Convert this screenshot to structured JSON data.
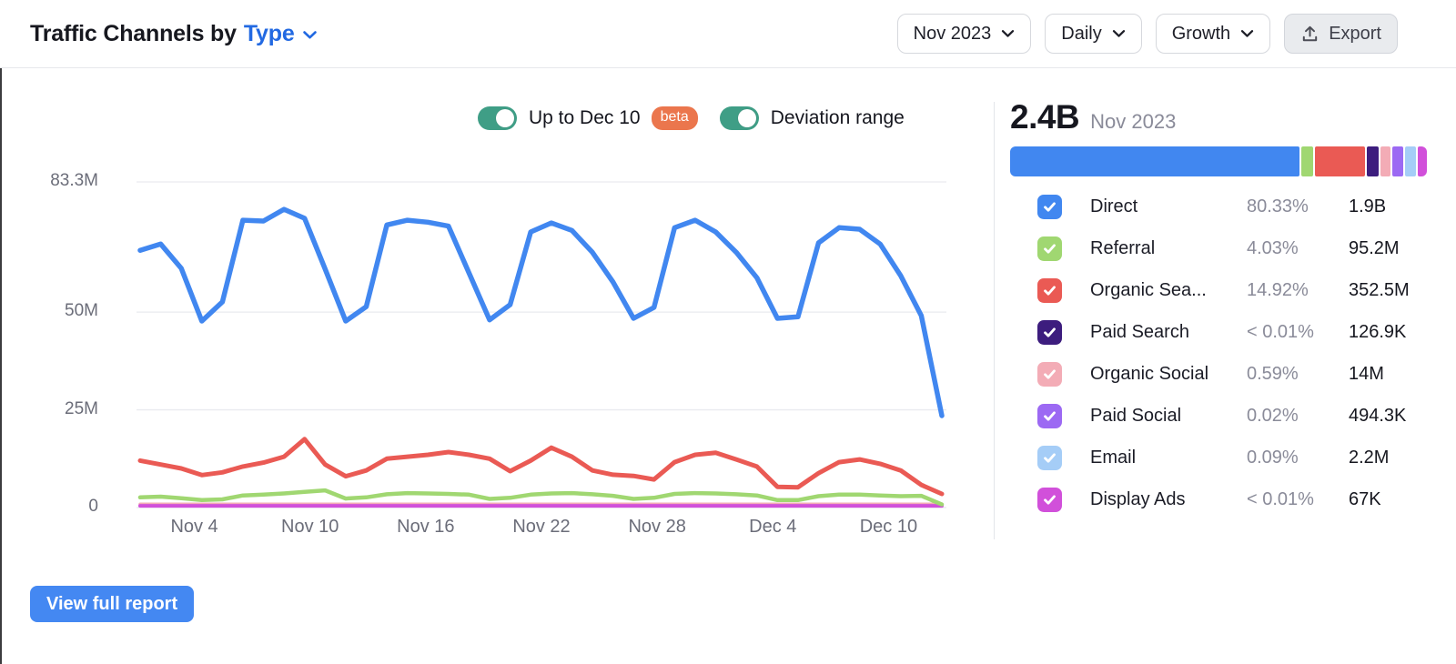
{
  "header": {
    "title_prefix": "Traffic Channels by",
    "title_link": "Type",
    "controls": {
      "period": "Nov 2023",
      "granularity": "Daily",
      "metric": "Growth",
      "export_label": "Export"
    }
  },
  "toggles": [
    {
      "label": "Up to Dec 10",
      "badge": "beta",
      "state": "on"
    },
    {
      "label": "Deviation range",
      "state": "on"
    }
  ],
  "chart_data": {
    "type": "line",
    "title": "Traffic Channels by Type — daily visits",
    "x_unit": "day",
    "x": [
      "Nov 1",
      "Nov 2",
      "Nov 3",
      "Nov 4",
      "Nov 5",
      "Nov 6",
      "Nov 7",
      "Nov 8",
      "Nov 9",
      "Nov 10",
      "Nov 11",
      "Nov 12",
      "Nov 13",
      "Nov 14",
      "Nov 15",
      "Nov 16",
      "Nov 17",
      "Nov 18",
      "Nov 19",
      "Nov 20",
      "Nov 21",
      "Nov 22",
      "Nov 23",
      "Nov 24",
      "Nov 25",
      "Nov 26",
      "Nov 27",
      "Nov 28",
      "Nov 29",
      "Nov 30",
      "Dec 1",
      "Dec 2",
      "Dec 3",
      "Dec 4",
      "Dec 5",
      "Dec 6",
      "Dec 7",
      "Dec 8",
      "Dec 9",
      "Dec 10"
    ],
    "xticks": [
      "Nov 4",
      "Nov 10",
      "Nov 16",
      "Nov 22",
      "Nov 28",
      "Dec 4",
      "Dec 10"
    ],
    "yticks": [
      {
        "value": 83.3,
        "label": "83.3M"
      },
      {
        "value": 50,
        "label": "50M"
      },
      {
        "value": 25,
        "label": "25M"
      },
      {
        "value": 0,
        "label": "0"
      }
    ],
    "ylim": [
      0,
      83.3
    ],
    "value_unit": "M visits per day",
    "grid": true,
    "legend_position": "right-panel",
    "series": [
      {
        "name": "Direct",
        "color": "#4187f0",
        "values": [
          65.8,
          67.4,
          61.2,
          47.7,
          52.6,
          73.5,
          73.3,
          76.3,
          74,
          61,
          47.7,
          51.4,
          72.3,
          73.5,
          73,
          72,
          60,
          48,
          51.9,
          70.5,
          72.8,
          70.9,
          65.3,
          57.7,
          48.4,
          51.2,
          71.6,
          73.5,
          70.5,
          65.3,
          58.8,
          48.4,
          48.8,
          67.7,
          71.6,
          71.2,
          67.4,
          59.3,
          49.1,
          23.5
        ]
      },
      {
        "name": "Organic Search",
        "color": "#ea5a54",
        "values": [
          12,
          11,
          10,
          8.3,
          9,
          10.5,
          11.5,
          13,
          17.5,
          11,
          8,
          9.5,
          12.5,
          13,
          13.5,
          14.2,
          13.5,
          12.5,
          9.3,
          12,
          15.3,
          13,
          9.5,
          8.4,
          8.1,
          7.2,
          11.6,
          13.5,
          14,
          12.3,
          10.5,
          5.3,
          5.2,
          8.8,
          11.6,
          12.3,
          11.2,
          9.5,
          5.8,
          3.5
        ]
      },
      {
        "name": "Referral",
        "color": "#a0d771",
        "values": [
          2.6,
          2.8,
          2.4,
          1.9,
          2.1,
          3.1,
          3.3,
          3.6,
          4.0,
          4.4,
          2.3,
          2.6,
          3.4,
          3.7,
          3.6,
          3.5,
          3.3,
          2.2,
          2.5,
          3.3,
          3.6,
          3.7,
          3.4,
          3.0,
          2.2,
          2.5,
          3.5,
          3.7,
          3.6,
          3.4,
          3.1,
          1.9,
          1.9,
          2.9,
          3.3,
          3.3,
          3.1,
          2.9,
          3.0,
          0.8
        ]
      },
      {
        "name": "Organic Social",
        "color": "#f3acb6",
        "values": [
          0.85,
          0.85,
          0.85,
          0.85,
          0.85,
          0.85,
          0.85,
          0.85,
          0.85,
          0.85,
          0.85,
          0.85,
          0.85,
          0.85,
          0.85,
          0.85,
          0.85,
          0.85,
          0.85,
          0.85,
          0.85,
          0.85,
          0.85,
          0.85,
          0.85,
          0.85,
          0.85,
          0.85,
          0.85,
          0.85,
          0.85,
          0.85,
          0.85,
          0.85,
          0.85,
          0.85,
          0.85,
          0.85,
          0.85,
          0.85
        ]
      },
      {
        "name": "Display Ads",
        "color": "#d150da",
        "values": [
          0.45,
          0.45,
          0.45,
          0.45,
          0.45,
          0.45,
          0.45,
          0.45,
          0.45,
          0.45,
          0.45,
          0.45,
          0.45,
          0.45,
          0.45,
          0.45,
          0.45,
          0.45,
          0.45,
          0.45,
          0.45,
          0.45,
          0.45,
          0.45,
          0.45,
          0.45,
          0.45,
          0.45,
          0.45,
          0.45,
          0.45,
          0.45,
          0.45,
          0.45,
          0.45,
          0.45,
          0.45,
          0.45,
          0.45,
          0.45
        ]
      }
    ]
  },
  "summary": {
    "total": "2.4B",
    "period": "Nov 2023",
    "bar_segments": [
      {
        "name": "Direct",
        "color": "#4187f0",
        "width_pct": 69.5
      },
      {
        "name": "Referral",
        "color": "#a0d771",
        "width_pct": 2.7
      },
      {
        "name": "Organic Search",
        "color": "#ea5a54",
        "width_pct": 12
      },
      {
        "name": "Paid Search",
        "color": "#3d1d7e",
        "width_pct": 2.9
      },
      {
        "name": "Organic Social",
        "color": "#f3acb6",
        "width_pct": 2.5
      },
      {
        "name": "Paid Social",
        "color": "#9c69f3",
        "width_pct": 2.5
      },
      {
        "name": "Email",
        "color": "#a5cdf7",
        "width_pct": 2.7
      },
      {
        "name": "Display Ads",
        "color": "#d150da",
        "width_pct": 2.9
      }
    ],
    "rows": [
      {
        "label": "Direct",
        "color": "#4187f0",
        "percent": "80.33%",
        "value": "1.9B"
      },
      {
        "label": "Referral",
        "color": "#a0d771",
        "percent": "4.03%",
        "value": "95.2M"
      },
      {
        "label": "Organic Sea...",
        "color": "#ea5a54",
        "percent": "14.92%",
        "value": "352.5M"
      },
      {
        "label": "Paid Search",
        "color": "#3d1d7e",
        "percent": "< 0.01%",
        "value": "126.9K"
      },
      {
        "label": "Organic Social",
        "color": "#f3acb6",
        "percent": "0.59%",
        "value": "14M"
      },
      {
        "label": "Paid Social",
        "color": "#9c69f3",
        "percent": "0.02%",
        "value": "494.3K"
      },
      {
        "label": "Email",
        "color": "#a5cdf7",
        "percent": "0.09%",
        "value": "2.2M"
      },
      {
        "label": "Display Ads",
        "color": "#d150da",
        "percent": "< 0.01%",
        "value": "67K"
      }
    ]
  },
  "footer": {
    "view_report_label": "View full report"
  }
}
